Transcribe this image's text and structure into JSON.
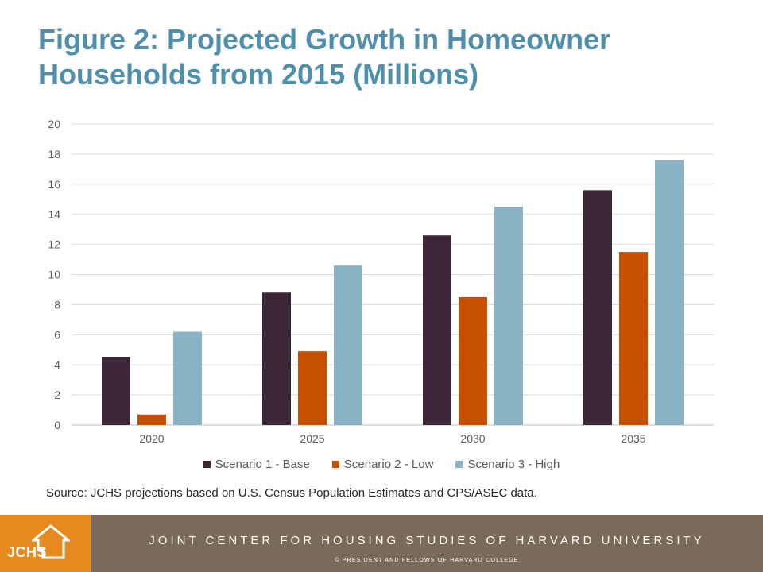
{
  "title": {
    "line1": "Figure 2: Projected Growth in Homeowner",
    "line2": "Households from 2015 (Millions)"
  },
  "chart_data": {
    "type": "bar",
    "title": "Figure 2: Projected Growth in Homeowner Households from 2015 (Millions)",
    "categories": [
      "2020",
      "2025",
      "2030",
      "2035"
    ],
    "series": [
      {
        "name": "Scenario 1 - Base",
        "color": "#3c2739",
        "values": [
          4.5,
          8.8,
          12.6,
          15.6
        ]
      },
      {
        "name": "Scenario 2 - Low",
        "color": "#c75000",
        "values": [
          0.7,
          4.9,
          8.5,
          11.5
        ]
      },
      {
        "name": "Scenario 3 - High",
        "color": "#8ab4c6",
        "values": [
          6.2,
          10.6,
          14.5,
          17.6
        ]
      }
    ],
    "y_ticks": [
      "0",
      "2",
      "4",
      "6",
      "8",
      "10",
      "12",
      "14",
      "16",
      "18",
      "20"
    ],
    "ylim": [
      0,
      20
    ],
    "grid": true,
    "legend_position": "bottom",
    "xlabel": "",
    "ylabel": ""
  },
  "source": "Source: JCHS projections based on U.S. Census Population Estimates and CPS/ASEC data.",
  "footer": {
    "logo_text": "JCHS",
    "org_name": "JOINT CENTER FOR HOUSING STUDIES OF HARVARD UNIVERSITY",
    "copyright": "© PRESIDENT AND FELLOWS OF HARVARD COLLEGE"
  },
  "colors": {
    "title": "#4f8fac",
    "footer_orange": "#e58a1f",
    "footer_brown": "#7a6a5a"
  }
}
